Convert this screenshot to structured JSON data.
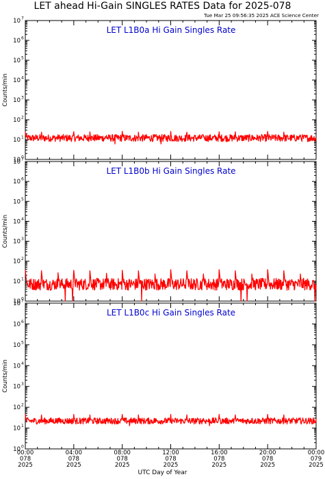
{
  "header": {
    "title": "LET ahead Hi-Gain SINGLES RATES Data for 2025-078",
    "timestamp": "Tue Mar 25 09:56:35 2025 ACE Science Center"
  },
  "colors": {
    "trace": "#ff0000",
    "panel_title": "#0000cc",
    "axes": "#000000"
  },
  "chart_data": [
    {
      "type": "line",
      "title": "LET L1B0a Hi Gain Singles Rate",
      "ylabel": "Counts/min",
      "yscale": "log",
      "ylim": [
        1,
        10000000
      ],
      "xlim_hours": [
        0,
        24
      ],
      "baseline": 12,
      "noise": 0.18,
      "spikes": [
        {
          "hour": 0.0,
          "value": 25
        },
        {
          "hour": 1.33,
          "value": 25
        },
        {
          "hour": 2.67,
          "value": 27
        },
        {
          "hour": 4.0,
          "value": 25
        },
        {
          "hour": 5.33,
          "value": 26
        },
        {
          "hour": 6.67,
          "value": 25
        },
        {
          "hour": 8.0,
          "value": 26
        },
        {
          "hour": 9.33,
          "value": 25
        },
        {
          "hour": 10.67,
          "value": 25
        },
        {
          "hour": 12.0,
          "value": 26
        },
        {
          "hour": 13.33,
          "value": 25
        },
        {
          "hour": 14.67,
          "value": 26
        },
        {
          "hour": 16.0,
          "value": 25
        },
        {
          "hour": 17.33,
          "value": 26
        },
        {
          "hour": 18.67,
          "value": 25
        },
        {
          "hour": 20.0,
          "value": 26
        },
        {
          "hour": 21.33,
          "value": 25
        },
        {
          "hour": 22.67,
          "value": 26
        }
      ],
      "dips": [
        {
          "hour": 7.4,
          "value": 6
        },
        {
          "hour": 11.2,
          "value": 6
        }
      ]
    },
    {
      "type": "line",
      "title": "LET L1B0b Hi Gain Singles Rate",
      "ylabel": "Counts/min",
      "yscale": "log",
      "ylim": [
        1,
        10000000
      ],
      "xlim_hours": [
        0,
        24
      ],
      "baseline": 7,
      "noise": 0.3,
      "spikes": [
        {
          "hour": 0.0,
          "value": 35
        },
        {
          "hour": 1.33,
          "value": 35
        },
        {
          "hour": 2.67,
          "value": 40
        },
        {
          "hour": 4.0,
          "value": 35
        },
        {
          "hour": 5.33,
          "value": 35
        },
        {
          "hour": 6.67,
          "value": 38
        },
        {
          "hour": 8.0,
          "value": 35
        },
        {
          "hour": 9.33,
          "value": 35
        },
        {
          "hour": 10.67,
          "value": 35
        },
        {
          "hour": 12.0,
          "value": 38
        },
        {
          "hour": 13.33,
          "value": 35
        },
        {
          "hour": 14.67,
          "value": 35
        },
        {
          "hour": 16.0,
          "value": 38
        },
        {
          "hour": 17.33,
          "value": 35
        },
        {
          "hour": 18.67,
          "value": 35
        },
        {
          "hour": 20.0,
          "value": 38
        },
        {
          "hour": 21.33,
          "value": 35
        },
        {
          "hour": 22.67,
          "value": 35
        }
      ],
      "dips": [
        {
          "hour": 3.3,
          "value": 1
        },
        {
          "hour": 3.9,
          "value": 1
        },
        {
          "hour": 9.6,
          "value": 1
        },
        {
          "hour": 17.8,
          "value": 1
        },
        {
          "hour": 18.3,
          "value": 1
        },
        {
          "hour": 23.9,
          "value": 1
        }
      ]
    },
    {
      "type": "line",
      "title": "LET L1B0c Hi Gain Singles Rate",
      "ylabel": "Counts/min",
      "yscale": "log",
      "ylim": [
        1,
        10000000
      ],
      "xlim_hours": [
        0,
        24
      ],
      "baseline": 22,
      "noise": 0.15,
      "spikes": [
        {
          "hour": 0.0,
          "value": 45
        },
        {
          "hour": 1.33,
          "value": 45
        },
        {
          "hour": 2.67,
          "value": 45
        },
        {
          "hour": 4.0,
          "value": 45
        },
        {
          "hour": 5.33,
          "value": 45
        },
        {
          "hour": 6.67,
          "value": 45
        },
        {
          "hour": 8.0,
          "value": 45
        },
        {
          "hour": 9.33,
          "value": 45
        },
        {
          "hour": 10.67,
          "value": 45
        },
        {
          "hour": 12.0,
          "value": 45
        },
        {
          "hour": 13.33,
          "value": 45
        },
        {
          "hour": 14.67,
          "value": 45
        },
        {
          "hour": 16.0,
          "value": 45
        },
        {
          "hour": 17.33,
          "value": 45
        },
        {
          "hour": 18.67,
          "value": 45
        },
        {
          "hour": 20.0,
          "value": 45
        },
        {
          "hour": 21.33,
          "value": 45
        },
        {
          "hour": 22.67,
          "value": 45
        }
      ],
      "dips": [
        {
          "hour": 8.6,
          "value": 13
        },
        {
          "hour": 15.2,
          "value": 13
        }
      ]
    }
  ],
  "y_ticks": [
    {
      "base": "10",
      "exp": "0"
    },
    {
      "base": "10",
      "exp": "1"
    },
    {
      "base": "10",
      "exp": "2"
    },
    {
      "base": "10",
      "exp": "3"
    },
    {
      "base": "10",
      "exp": "4"
    },
    {
      "base": "10",
      "exp": "5"
    },
    {
      "base": "10",
      "exp": "6"
    },
    {
      "base": "10",
      "exp": "7"
    }
  ],
  "x_ticks": [
    {
      "hour": 0,
      "time": "00:00",
      "doy": "078",
      "year": "2025"
    },
    {
      "hour": 4,
      "time": "04:00",
      "doy": "078",
      "year": "2025"
    },
    {
      "hour": 8,
      "time": "08:00",
      "doy": "078",
      "year": "2025"
    },
    {
      "hour": 12,
      "time": "12:00",
      "doy": "078",
      "year": "2025"
    },
    {
      "hour": 16,
      "time": "16:00",
      "doy": "078",
      "year": "2025"
    },
    {
      "hour": 20,
      "time": "20:00",
      "doy": "078",
      "year": "2025"
    },
    {
      "hour": 24,
      "time": "00:00",
      "doy": "079",
      "year": "2025"
    }
  ],
  "xlabel": "UTC Day of Year"
}
